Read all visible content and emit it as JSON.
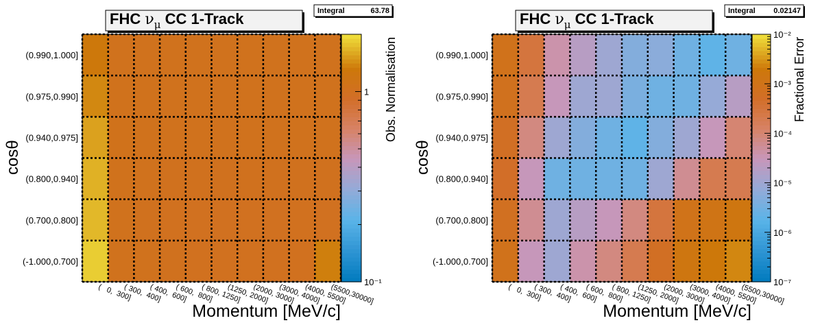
{
  "chart_data": [
    {
      "type": "heatmap",
      "title": "FHC νμ CC 1-Track",
      "title_parts": {
        "pre": "FHC ",
        "nu": "ν",
        "mu": "μ",
        "post": " CC 1-Track"
      },
      "stat_label": "Integral",
      "stat_value": "63.78",
      "xlabel": "Momentum [MeV/c]",
      "ylabel": "cosθ",
      "zlabel": "Obs. Normalisation",
      "zscale": "log",
      "zlim": [
        0.1,
        2.0
      ],
      "z_ticks": [
        {
          "value": 0.1,
          "label": "10⁻¹"
        },
        {
          "value": 1,
          "label": "1"
        }
      ],
      "x_categories": [
        "(   0,  300]",
        "( 300,  400]",
        "( 400,  600]",
        "( 600,  800]",
        "( 800, 1250]",
        "(1250, 2000]",
        "(2000, 3000]",
        "(3000, 4000]",
        "(4000, 5500]",
        "(5500,30000]"
      ],
      "y_categories": [
        "(-1.000,0.700]",
        "(0.700,0.800]",
        "(0.800,0.940]",
        "(0.940,0.975]",
        "(0.975,0.990]",
        "(0.990,1.000]"
      ],
      "grid": "dotted",
      "values": [
        [
          1.85,
          1.05,
          1.05,
          1.03,
          1.02,
          1.02,
          1.02,
          1.02,
          1.02,
          1.35
        ],
        [
          1.7,
          1.05,
          1.03,
          1.02,
          1.01,
          1.01,
          1.01,
          1.01,
          1.02,
          1.01
        ],
        [
          1.65,
          1.06,
          1.05,
          1.04,
          1.04,
          1.04,
          1.04,
          1.04,
          1.04,
          1.04
        ],
        [
          1.55,
          1.07,
          1.06,
          1.05,
          1.05,
          1.05,
          1.05,
          1.05,
          1.05,
          1.05
        ],
        [
          1.4,
          1.06,
          1.06,
          1.05,
          1.05,
          1.05,
          1.05,
          1.05,
          1.05,
          1.05
        ],
        [
          1.3,
          1.05,
          1.05,
          1.05,
          1.05,
          1.05,
          1.05,
          1.05,
          1.05,
          1.05
        ]
      ]
    },
    {
      "type": "heatmap",
      "title": "FHC νμ CC 1-Track",
      "title_parts": {
        "pre": "FHC ",
        "nu": "ν",
        "mu": "μ",
        "post": " CC 1-Track"
      },
      "stat_label": "Integral",
      "stat_value": "0.02147",
      "xlabel": "Momentum [MeV/c]",
      "ylabel": "cosθ",
      "zlabel": "Fractional Error",
      "zscale": "log",
      "zlim": [
        1e-07,
        0.01
      ],
      "z_ticks": [
        {
          "value": 1e-07,
          "label": "10⁻⁷"
        },
        {
          "value": 1e-06,
          "label": "10⁻⁶"
        },
        {
          "value": 1e-05,
          "label": "10⁻⁵"
        },
        {
          "value": 0.0001,
          "label": "10⁻⁴"
        },
        {
          "value": 0.001,
          "label": "10⁻³"
        },
        {
          "value": 0.01,
          "label": "10⁻²"
        }
      ],
      "x_categories": [
        "(   0,  300]",
        "( 300,  400]",
        "( 400,  600]",
        "( 600,  800]",
        "( 800, 1250]",
        "(1250, 2000]",
        "(2000, 3000]",
        "(3000, 4000]",
        "(4000, 5500]",
        "(5500,30000]"
      ],
      "y_categories": [
        "(-1.000,0.700]",
        "(0.700,0.800]",
        "(0.800,0.940]",
        "(0.940,0.975]",
        "(0.975,0.990]",
        "(0.990,1.000]"
      ],
      "grid": "dotted",
      "values": [
        [
          0.0009,
          3e-05,
          1e-05,
          4e-05,
          8e-05,
          0.0002,
          0.0006,
          0.0015,
          0.002,
          0.0025
        ],
        [
          0.0007,
          6e-05,
          1e-05,
          2e-05,
          3e-05,
          8e-05,
          0.0003,
          0.001,
          0.0012,
          0.0015
        ],
        [
          0.0005,
          3e-05,
          3e-06,
          3e-06,
          3e-06,
          3e-06,
          1e-05,
          6e-05,
          0.0002,
          0.0002
        ],
        [
          0.0006,
          8e-05,
          1e-05,
          5e-06,
          3e-06,
          2e-06,
          5e-06,
          1e-05,
          3e-05,
          0.0001
        ],
        [
          0.0008,
          0.0002,
          3e-05,
          1e-05,
          1e-05,
          4e-06,
          3e-06,
          3e-06,
          8e-06,
          2e-05
        ],
        [
          0.0009,
          0.0003,
          4e-05,
          2e-05,
          1e-05,
          5e-06,
          6e-06,
          3e-06,
          2e-06,
          3e-06
        ]
      ]
    }
  ]
}
